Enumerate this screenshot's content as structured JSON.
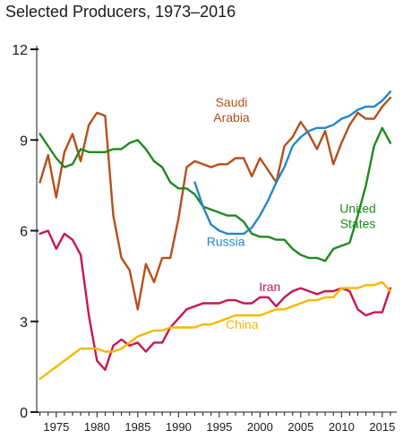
{
  "chart_data": {
    "type": "line",
    "title": "Selected Producers, 1973–2016",
    "xlabel": "",
    "ylabel": "",
    "xlim": [
      1973,
      2016
    ],
    "ylim": [
      0,
      12
    ],
    "x_ticks": [
      1975,
      1980,
      1985,
      1990,
      1995,
      2000,
      2005,
      2010,
      2015
    ],
    "x_tick_labels": [
      "1975",
      "1980",
      "1985",
      "1990",
      "1995",
      "2000",
      "2005",
      "2010",
      "2015"
    ],
    "y_ticks": [
      0,
      3,
      6,
      9,
      12
    ],
    "y_tick_labels": [
      "0",
      "3",
      "6",
      "9",
      "12"
    ],
    "grid": false,
    "legend": "direct labels",
    "series": [
      {
        "key": "saudi",
        "name": "Saudi Arabia",
        "label_lines": [
          "Saudi",
          "Arabia"
        ],
        "color": "#b5501a",
        "x": [
          1973,
          1974,
          1975,
          1976,
          1977,
          1978,
          1979,
          1980,
          1981,
          1982,
          1983,
          1984,
          1985,
          1986,
          1987,
          1988,
          1989,
          1990,
          1991,
          1992,
          1993,
          1994,
          1995,
          1996,
          1997,
          1998,
          1999,
          2000,
          2001,
          2002,
          2003,
          2004,
          2005,
          2006,
          2007,
          2008,
          2009,
          2010,
          2011,
          2012,
          2013,
          2014,
          2015,
          2016
        ],
        "values": [
          7.6,
          8.5,
          7.1,
          8.6,
          9.2,
          8.3,
          9.5,
          9.9,
          9.8,
          6.5,
          5.1,
          4.7,
          3.4,
          4.9,
          4.3,
          5.1,
          5.1,
          6.4,
          8.1,
          8.3,
          8.2,
          8.1,
          8.2,
          8.2,
          8.4,
          8.4,
          7.8,
          8.4,
          8.0,
          7.6,
          8.8,
          9.1,
          9.6,
          9.2,
          8.7,
          9.3,
          8.2,
          8.9,
          9.5,
          9.9,
          9.7,
          9.7,
          10.1,
          10.4
        ]
      },
      {
        "key": "us",
        "name": "United States",
        "label_lines": [
          "United",
          "States"
        ],
        "color": "#1f8a1f",
        "x": [
          1973,
          1974,
          1975,
          1976,
          1977,
          1978,
          1979,
          1980,
          1981,
          1982,
          1983,
          1984,
          1985,
          1986,
          1987,
          1988,
          1989,
          1990,
          1991,
          1992,
          1993,
          1994,
          1995,
          1996,
          1997,
          1998,
          1999,
          2000,
          2001,
          2002,
          2003,
          2004,
          2005,
          2006,
          2007,
          2008,
          2009,
          2010,
          2011,
          2012,
          2013,
          2014,
          2015,
          2016
        ],
        "values": [
          9.2,
          8.8,
          8.4,
          8.1,
          8.2,
          8.7,
          8.6,
          8.6,
          8.6,
          8.7,
          8.7,
          8.9,
          9.0,
          8.7,
          8.3,
          8.1,
          7.6,
          7.4,
          7.4,
          7.2,
          6.8,
          6.7,
          6.6,
          6.5,
          6.5,
          6.3,
          5.9,
          5.8,
          5.8,
          5.7,
          5.7,
          5.4,
          5.2,
          5.1,
          5.1,
          5.0,
          5.4,
          5.5,
          5.6,
          6.5,
          7.5,
          8.8,
          9.4,
          8.9
        ]
      },
      {
        "key": "russia",
        "name": "Russia",
        "label_lines": [
          "Russia"
        ],
        "color": "#2288cc",
        "x": [
          1992,
          1993,
          1994,
          1995,
          1996,
          1997,
          1998,
          1999,
          2000,
          2001,
          2002,
          2003,
          2004,
          2005,
          2006,
          2007,
          2008,
          2009,
          2010,
          2011,
          2012,
          2013,
          2014,
          2015,
          2016
        ],
        "values": [
          7.6,
          6.8,
          6.2,
          6.0,
          5.9,
          5.9,
          5.9,
          6.1,
          6.5,
          7.0,
          7.6,
          8.1,
          8.8,
          9.1,
          9.3,
          9.4,
          9.4,
          9.5,
          9.7,
          9.8,
          10.0,
          10.1,
          10.1,
          10.3,
          10.6
        ]
      },
      {
        "key": "iran",
        "name": "Iran",
        "label_lines": [
          "Iran"
        ],
        "color": "#c8174f",
        "x": [
          1973,
          1974,
          1975,
          1976,
          1977,
          1978,
          1979,
          1980,
          1981,
          1982,
          1983,
          1984,
          1985,
          1986,
          1987,
          1988,
          1989,
          1990,
          1991,
          1992,
          1993,
          1994,
          1995,
          1996,
          1997,
          1998,
          1999,
          2000,
          2001,
          2002,
          2003,
          2004,
          2005,
          2006,
          2007,
          2008,
          2009,
          2010,
          2011,
          2012,
          2013,
          2014,
          2015,
          2016
        ],
        "values": [
          5.9,
          6.0,
          5.4,
          5.9,
          5.7,
          5.2,
          3.2,
          1.7,
          1.4,
          2.2,
          2.4,
          2.2,
          2.3,
          2.0,
          2.3,
          2.3,
          2.8,
          3.1,
          3.4,
          3.5,
          3.6,
          3.6,
          3.6,
          3.7,
          3.7,
          3.6,
          3.6,
          3.8,
          3.8,
          3.5,
          3.8,
          4.0,
          4.1,
          4.0,
          3.9,
          4.0,
          4.0,
          4.1,
          4.0,
          3.4,
          3.2,
          3.3,
          3.3,
          4.1
        ]
      },
      {
        "key": "china",
        "name": "China",
        "label_lines": [
          "China"
        ],
        "color": "#f5b800",
        "x": [
          1973,
          1974,
          1975,
          1976,
          1977,
          1978,
          1979,
          1980,
          1981,
          1982,
          1983,
          1984,
          1985,
          1986,
          1987,
          1988,
          1989,
          1990,
          1991,
          1992,
          1993,
          1994,
          1995,
          1996,
          1997,
          1998,
          1999,
          2000,
          2001,
          2002,
          2003,
          2004,
          2005,
          2006,
          2007,
          2008,
          2009,
          2010,
          2011,
          2012,
          2013,
          2014,
          2015,
          2016
        ],
        "values": [
          1.1,
          1.3,
          1.5,
          1.7,
          1.9,
          2.1,
          2.1,
          2.1,
          2.0,
          2.0,
          2.1,
          2.3,
          2.5,
          2.6,
          2.7,
          2.7,
          2.8,
          2.8,
          2.8,
          2.8,
          2.9,
          2.9,
          3.0,
          3.1,
          3.2,
          3.2,
          3.2,
          3.2,
          3.3,
          3.4,
          3.4,
          3.5,
          3.6,
          3.7,
          3.7,
          3.8,
          3.8,
          4.1,
          4.1,
          4.1,
          4.2,
          4.2,
          4.3,
          4.0
        ]
      }
    ]
  }
}
